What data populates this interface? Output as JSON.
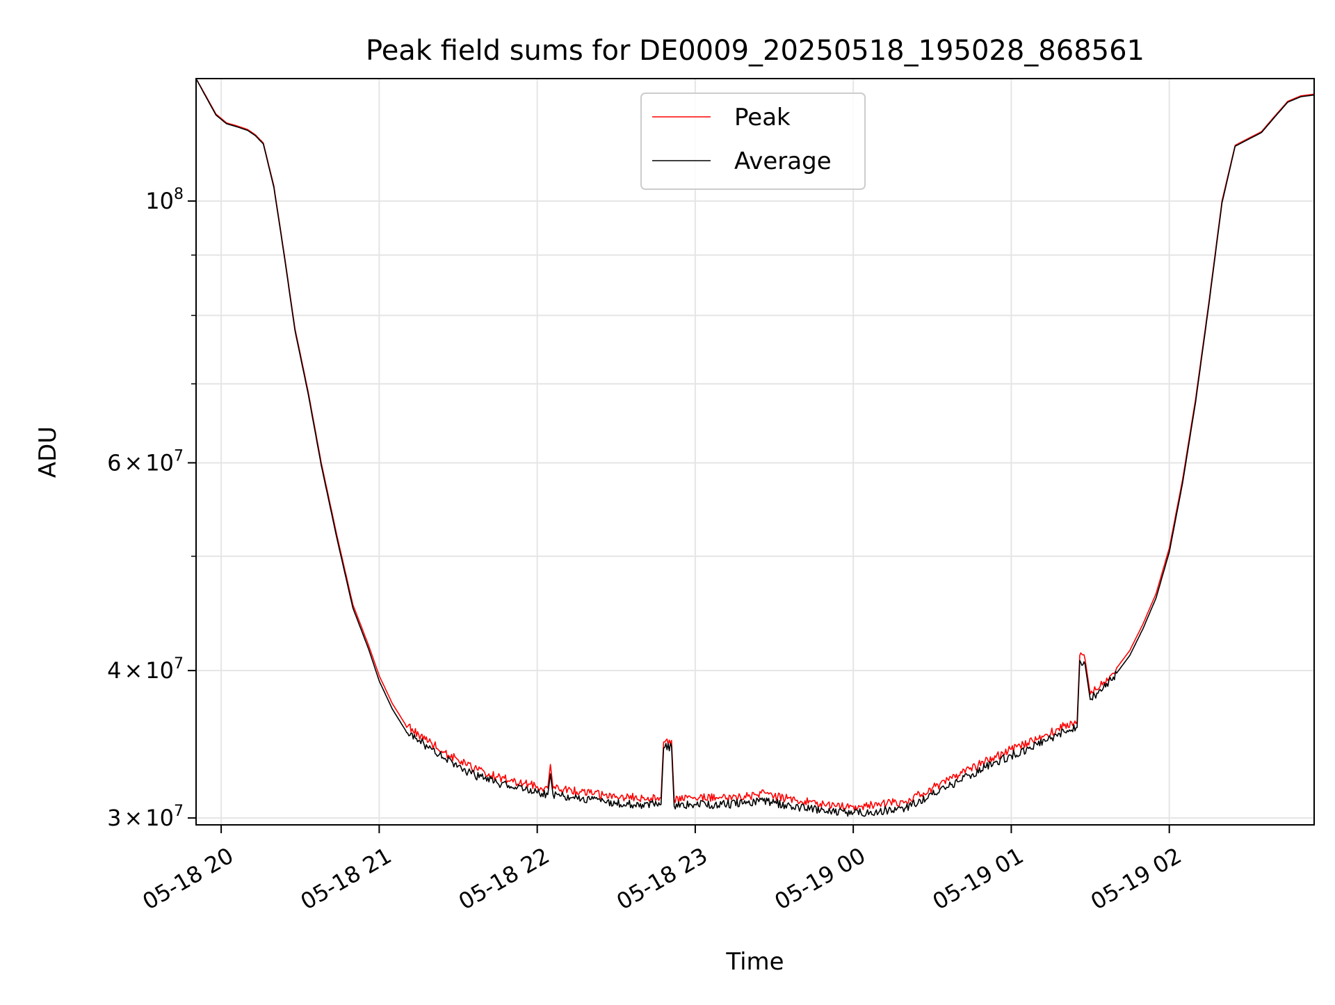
{
  "chart_data": {
    "type": "line",
    "title": "Peak field sums for DE0009_20250518_195028_868561",
    "xlabel": "Time",
    "ylabel": "ADU",
    "yscale": "log",
    "ylim": [
      29600000,
      127000000
    ],
    "xlim": [
      "2025-05-18 19:50:28",
      "2025-05-19 02:55:00"
    ],
    "grid": true,
    "legend_position": "top-center",
    "x_ticks": [
      {
        "t": "2025-05-18 20:00",
        "label": "05-18 20"
      },
      {
        "t": "2025-05-18 21:00",
        "label": "05-18 21"
      },
      {
        "t": "2025-05-18 22:00",
        "label": "05-18 22"
      },
      {
        "t": "2025-05-18 23:00",
        "label": "05-18 23"
      },
      {
        "t": "2025-05-19 00:00",
        "label": "05-19 00"
      },
      {
        "t": "2025-05-19 01:00",
        "label": "05-19 01"
      },
      {
        "t": "2025-05-19 02:00",
        "label": "05-19 02"
      }
    ],
    "y_major_ticks": [
      {
        "v": 100000000,
        "base": "10",
        "exp": "8",
        "mant": ""
      },
      {
        "v": 60000000,
        "base": "10",
        "exp": "7",
        "mant": "6"
      },
      {
        "v": 40000000,
        "base": "10",
        "exp": "7",
        "mant": "4"
      },
      {
        "v": 30000000,
        "base": "10",
        "exp": "7",
        "mant": "3"
      }
    ],
    "y_minor_grid": [
      90000000,
      80000000,
      70000000,
      50000000
    ],
    "series": [
      {
        "name": "Peak",
        "color": "#ff0000",
        "points": [
          [
            "2025-05-18 19:50:28",
            127000000
          ],
          [
            "2025-05-18 19:54",
            123000000
          ],
          [
            "2025-05-18 19:58",
            118500000
          ],
          [
            "2025-05-18 20:02",
            116500000
          ],
          [
            "2025-05-18 20:06",
            115800000
          ],
          [
            "2025-05-18 20:10",
            115000000
          ],
          [
            "2025-05-18 20:13",
            113800000
          ],
          [
            "2025-05-18 20:16",
            112000000
          ],
          [
            "2025-05-18 20:20",
            103000000
          ],
          [
            "2025-05-18 20:24",
            90000000
          ],
          [
            "2025-05-18 20:28",
            78000000
          ],
          [
            "2025-05-18 20:33",
            69000000
          ],
          [
            "2025-05-18 20:38",
            60000000
          ],
          [
            "2025-05-18 20:44",
            52000000
          ],
          [
            "2025-05-18 20:50",
            45500000
          ],
          [
            "2025-05-18 20:56",
            42000000
          ],
          [
            "2025-05-18 21:00",
            39600000
          ],
          [
            "2025-05-18 21:05",
            37500000
          ],
          [
            "2025-05-18 21:10",
            36000000
          ],
          [
            "2025-05-18 21:15",
            35300000
          ],
          [
            "2025-05-18 21:20",
            34700000
          ],
          [
            "2025-05-18 21:25",
            34100000
          ],
          [
            "2025-05-18 21:30",
            33600000
          ],
          [
            "2025-05-18 21:35",
            33100000
          ],
          [
            "2025-05-18 21:40",
            32800000
          ],
          [
            "2025-05-18 21:45",
            32500000
          ],
          [
            "2025-05-18 21:50",
            32300000
          ],
          [
            "2025-05-18 21:55",
            32100000
          ],
          [
            "2025-05-18 22:00",
            31900000
          ],
          [
            "2025-05-18 22:04",
            31800000
          ],
          [
            "2025-05-18 22:05",
            33300000
          ],
          [
            "2025-05-18 22:06",
            31800000
          ],
          [
            "2025-05-18 22:10",
            31700000
          ],
          [
            "2025-05-18 22:20",
            31500000
          ],
          [
            "2025-05-18 22:30",
            31300000
          ],
          [
            "2025-05-18 22:40",
            31200000
          ],
          [
            "2025-05-18 22:47",
            31200000
          ],
          [
            "2025-05-18 22:48",
            34800000
          ],
          [
            "2025-05-18 22:51",
            34900000
          ],
          [
            "2025-05-18 22:52",
            31100000
          ],
          [
            "2025-05-18 23:00",
            31200000
          ],
          [
            "2025-05-18 23:10",
            31200000
          ],
          [
            "2025-05-18 23:20",
            31300000
          ],
          [
            "2025-05-18 23:25",
            31500000
          ],
          [
            "2025-05-18 23:30",
            31300000
          ],
          [
            "2025-05-18 23:40",
            31000000
          ],
          [
            "2025-05-18 23:50",
            30800000
          ],
          [
            "2025-05-19 00:00",
            30700000
          ],
          [
            "2025-05-19 00:10",
            30800000
          ],
          [
            "2025-05-19 00:20",
            31000000
          ],
          [
            "2025-05-19 00:30",
            31800000
          ],
          [
            "2025-05-19 00:40",
            32600000
          ],
          [
            "2025-05-19 00:50",
            33500000
          ],
          [
            "2025-05-19 01:00",
            34300000
          ],
          [
            "2025-05-19 01:10",
            35000000
          ],
          [
            "2025-05-19 01:20",
            35900000
          ],
          [
            "2025-05-19 01:25",
            36200000
          ],
          [
            "2025-05-19 01:26",
            41200000
          ],
          [
            "2025-05-19 01:28",
            40900000
          ],
          [
            "2025-05-19 01:30",
            38200000
          ],
          [
            "2025-05-19 01:35",
            39100000
          ],
          [
            "2025-05-19 01:40",
            40200000
          ],
          [
            "2025-05-19 01:45",
            41600000
          ],
          [
            "2025-05-19 01:50",
            43800000
          ],
          [
            "2025-05-19 01:55",
            46500000
          ],
          [
            "2025-05-19 02:00",
            50800000
          ],
          [
            "2025-05-19 02:05",
            58000000
          ],
          [
            "2025-05-19 02:10",
            68000000
          ],
          [
            "2025-05-19 02:15",
            82000000
          ],
          [
            "2025-05-19 02:20",
            100000000
          ],
          [
            "2025-05-19 02:25",
            111500000
          ],
          [
            "2025-05-19 02:30",
            113000000
          ],
          [
            "2025-05-19 02:35",
            114500000
          ],
          [
            "2025-05-19 02:40",
            118000000
          ],
          [
            "2025-05-19 02:45",
            121500000
          ],
          [
            "2025-05-19 02:50",
            122800000
          ],
          [
            "2025-05-19 02:55",
            123200000
          ]
        ]
      },
      {
        "name": "Average",
        "color": "#000000",
        "points": [
          [
            "2025-05-18 19:50:28",
            127000000
          ],
          [
            "2025-05-18 19:54",
            122800000
          ],
          [
            "2025-05-18 19:58",
            118300000
          ],
          [
            "2025-05-18 20:02",
            116300000
          ],
          [
            "2025-05-18 20:06",
            115600000
          ],
          [
            "2025-05-18 20:10",
            114800000
          ],
          [
            "2025-05-18 20:13",
            113600000
          ],
          [
            "2025-05-18 20:16",
            111800000
          ],
          [
            "2025-05-18 20:20",
            102700000
          ],
          [
            "2025-05-18 20:24",
            89700000
          ],
          [
            "2025-05-18 20:28",
            77700000
          ],
          [
            "2025-05-18 20:33",
            68700000
          ],
          [
            "2025-05-18 20:38",
            59700000
          ],
          [
            "2025-05-18 20:44",
            51700000
          ],
          [
            "2025-05-18 20:50",
            45200000
          ],
          [
            "2025-05-18 20:56",
            41700000
          ],
          [
            "2025-05-18 21:00",
            39200000
          ],
          [
            "2025-05-18 21:05",
            37100000
          ],
          [
            "2025-05-18 21:10",
            35600000
          ],
          [
            "2025-05-18 21:15",
            34900000
          ],
          [
            "2025-05-18 21:20",
            34300000
          ],
          [
            "2025-05-18 21:25",
            33700000
          ],
          [
            "2025-05-18 21:30",
            33200000
          ],
          [
            "2025-05-18 21:35",
            32700000
          ],
          [
            "2025-05-18 21:40",
            32400000
          ],
          [
            "2025-05-18 21:45",
            32100000
          ],
          [
            "2025-05-18 21:50",
            31900000
          ],
          [
            "2025-05-18 21:55",
            31700000
          ],
          [
            "2025-05-18 22:00",
            31500000
          ],
          [
            "2025-05-18 22:04",
            31400000
          ],
          [
            "2025-05-18 22:05",
            32700000
          ],
          [
            "2025-05-18 22:06",
            31400000
          ],
          [
            "2025-05-18 22:10",
            31300000
          ],
          [
            "2025-05-18 22:20",
            31100000
          ],
          [
            "2025-05-18 22:30",
            30900000
          ],
          [
            "2025-05-18 22:40",
            30800000
          ],
          [
            "2025-05-18 22:47",
            30800000
          ],
          [
            "2025-05-18 22:48",
            34400000
          ],
          [
            "2025-05-18 22:51",
            34500000
          ],
          [
            "2025-05-18 22:52",
            30700000
          ],
          [
            "2025-05-18 23:00",
            30800000
          ],
          [
            "2025-05-18 23:10",
            30800000
          ],
          [
            "2025-05-18 23:20",
            30900000
          ],
          [
            "2025-05-18 23:25",
            31100000
          ],
          [
            "2025-05-18 23:30",
            30900000
          ],
          [
            "2025-05-18 23:40",
            30600000
          ],
          [
            "2025-05-18 23:50",
            30400000
          ],
          [
            "2025-05-19 00:00",
            30300000
          ],
          [
            "2025-05-19 00:10",
            30400000
          ],
          [
            "2025-05-19 00:20",
            30600000
          ],
          [
            "2025-05-19 00:30",
            31400000
          ],
          [
            "2025-05-19 00:40",
            32200000
          ],
          [
            "2025-05-19 00:50",
            33100000
          ],
          [
            "2025-05-19 01:00",
            33900000
          ],
          [
            "2025-05-19 01:10",
            34600000
          ],
          [
            "2025-05-19 01:20",
            35500000
          ],
          [
            "2025-05-19 01:25",
            35800000
          ],
          [
            "2025-05-19 01:26",
            40800000
          ],
          [
            "2025-05-19 01:28",
            40500000
          ],
          [
            "2025-05-19 01:30",
            37800000
          ],
          [
            "2025-05-19 01:35",
            38700000
          ],
          [
            "2025-05-19 01:40",
            39800000
          ],
          [
            "2025-05-19 01:45",
            41200000
          ],
          [
            "2025-05-19 01:50",
            43400000
          ],
          [
            "2025-05-19 01:55",
            46100000
          ],
          [
            "2025-05-19 02:00",
            50400000
          ],
          [
            "2025-05-19 02:05",
            57600000
          ],
          [
            "2025-05-19 02:10",
            67600000
          ],
          [
            "2025-05-19 02:15",
            81600000
          ],
          [
            "2025-05-19 02:20",
            99600000
          ],
          [
            "2025-05-19 02:25",
            111300000
          ],
          [
            "2025-05-19 02:30",
            112800000
          ],
          [
            "2025-05-19 02:35",
            114300000
          ],
          [
            "2025-05-19 02:40",
            117800000
          ],
          [
            "2025-05-19 02:45",
            121300000
          ],
          [
            "2025-05-19 02:50",
            122600000
          ],
          [
            "2025-05-19 02:55",
            123000000
          ]
        ]
      }
    ]
  }
}
